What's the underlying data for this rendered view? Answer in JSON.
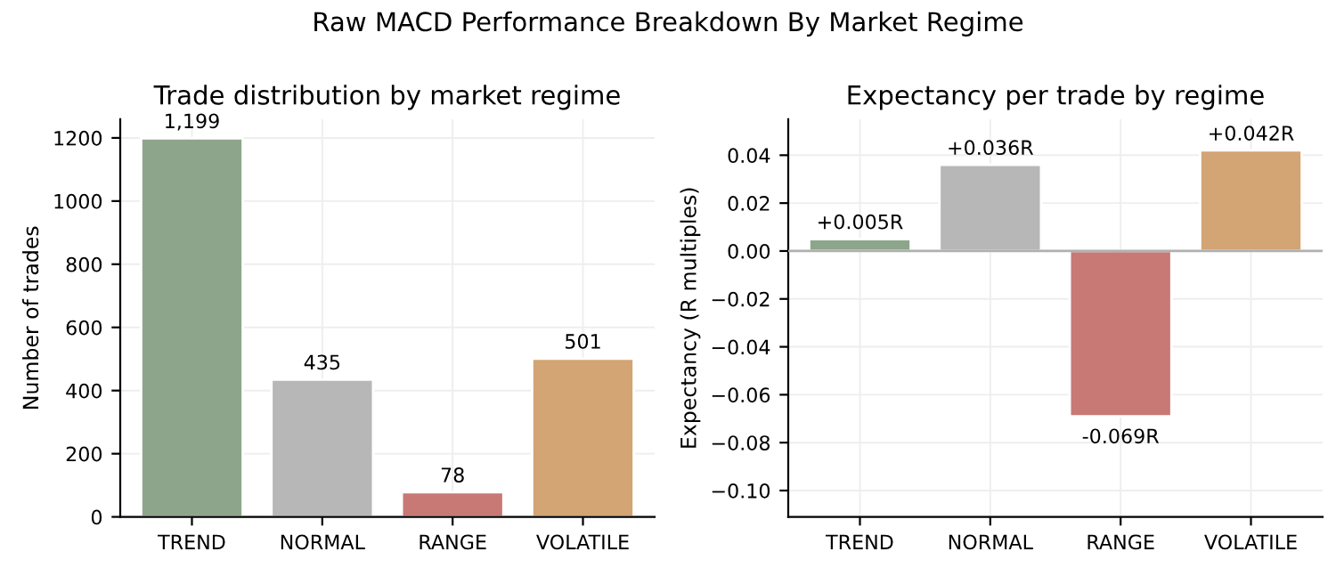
{
  "chart_data": [
    {
      "type": "bar",
      "title": "Trade distribution by market regime",
      "ylabel": "Number of trades",
      "annotations": [
        "Raw MACD Performance Breakdown By Market Regime"
      ],
      "categories": [
        "TREND",
        "NORMAL",
        "RANGE",
        "VOLATILE"
      ],
      "values": [
        1199,
        435,
        78,
        501
      ],
      "colors": [
        "#8da68b",
        "#b7b7b7",
        "#c87875",
        "#d3a474"
      ],
      "value_labels": [
        "1,199",
        "435",
        "78",
        "501"
      ],
      "ylim": [
        0,
        1259
      ],
      "yticks": [
        0,
        200,
        400,
        600,
        800,
        1000,
        1200
      ],
      "grid": true
    },
    {
      "type": "bar",
      "title": "Expectancy per trade by regime",
      "ylabel": "Expectancy (R multiples)",
      "categories": [
        "TREND",
        "NORMAL",
        "RANGE",
        "VOLATILE"
      ],
      "values": [
        0.005,
        0.036,
        -0.069,
        0.042
      ],
      "colors": [
        "#8da68b",
        "#b7b7b7",
        "#c87875",
        "#d3a474"
      ],
      "value_labels": [
        "+0.005R",
        "+0.036R",
        "-0.069R",
        "+0.042R"
      ],
      "ylim": [
        -0.111,
        0.055
      ],
      "yticks": [
        {
          "value": -0.1,
          "label": "−0.10"
        },
        {
          "value": -0.08,
          "label": "−0.08"
        },
        {
          "value": -0.06,
          "label": "−0.06"
        },
        {
          "value": -0.04,
          "label": "−0.04"
        },
        {
          "value": -0.02,
          "label": "−0.02"
        },
        {
          "value": 0,
          "label": "0.00"
        },
        {
          "value": 0.02,
          "label": "0.02"
        },
        {
          "value": 0.04,
          "label": "0.04"
        }
      ],
      "ref_lines": [
        {
          "axis": "y",
          "value": 0,
          "color": "#b0b0b0"
        }
      ],
      "grid": true
    }
  ]
}
